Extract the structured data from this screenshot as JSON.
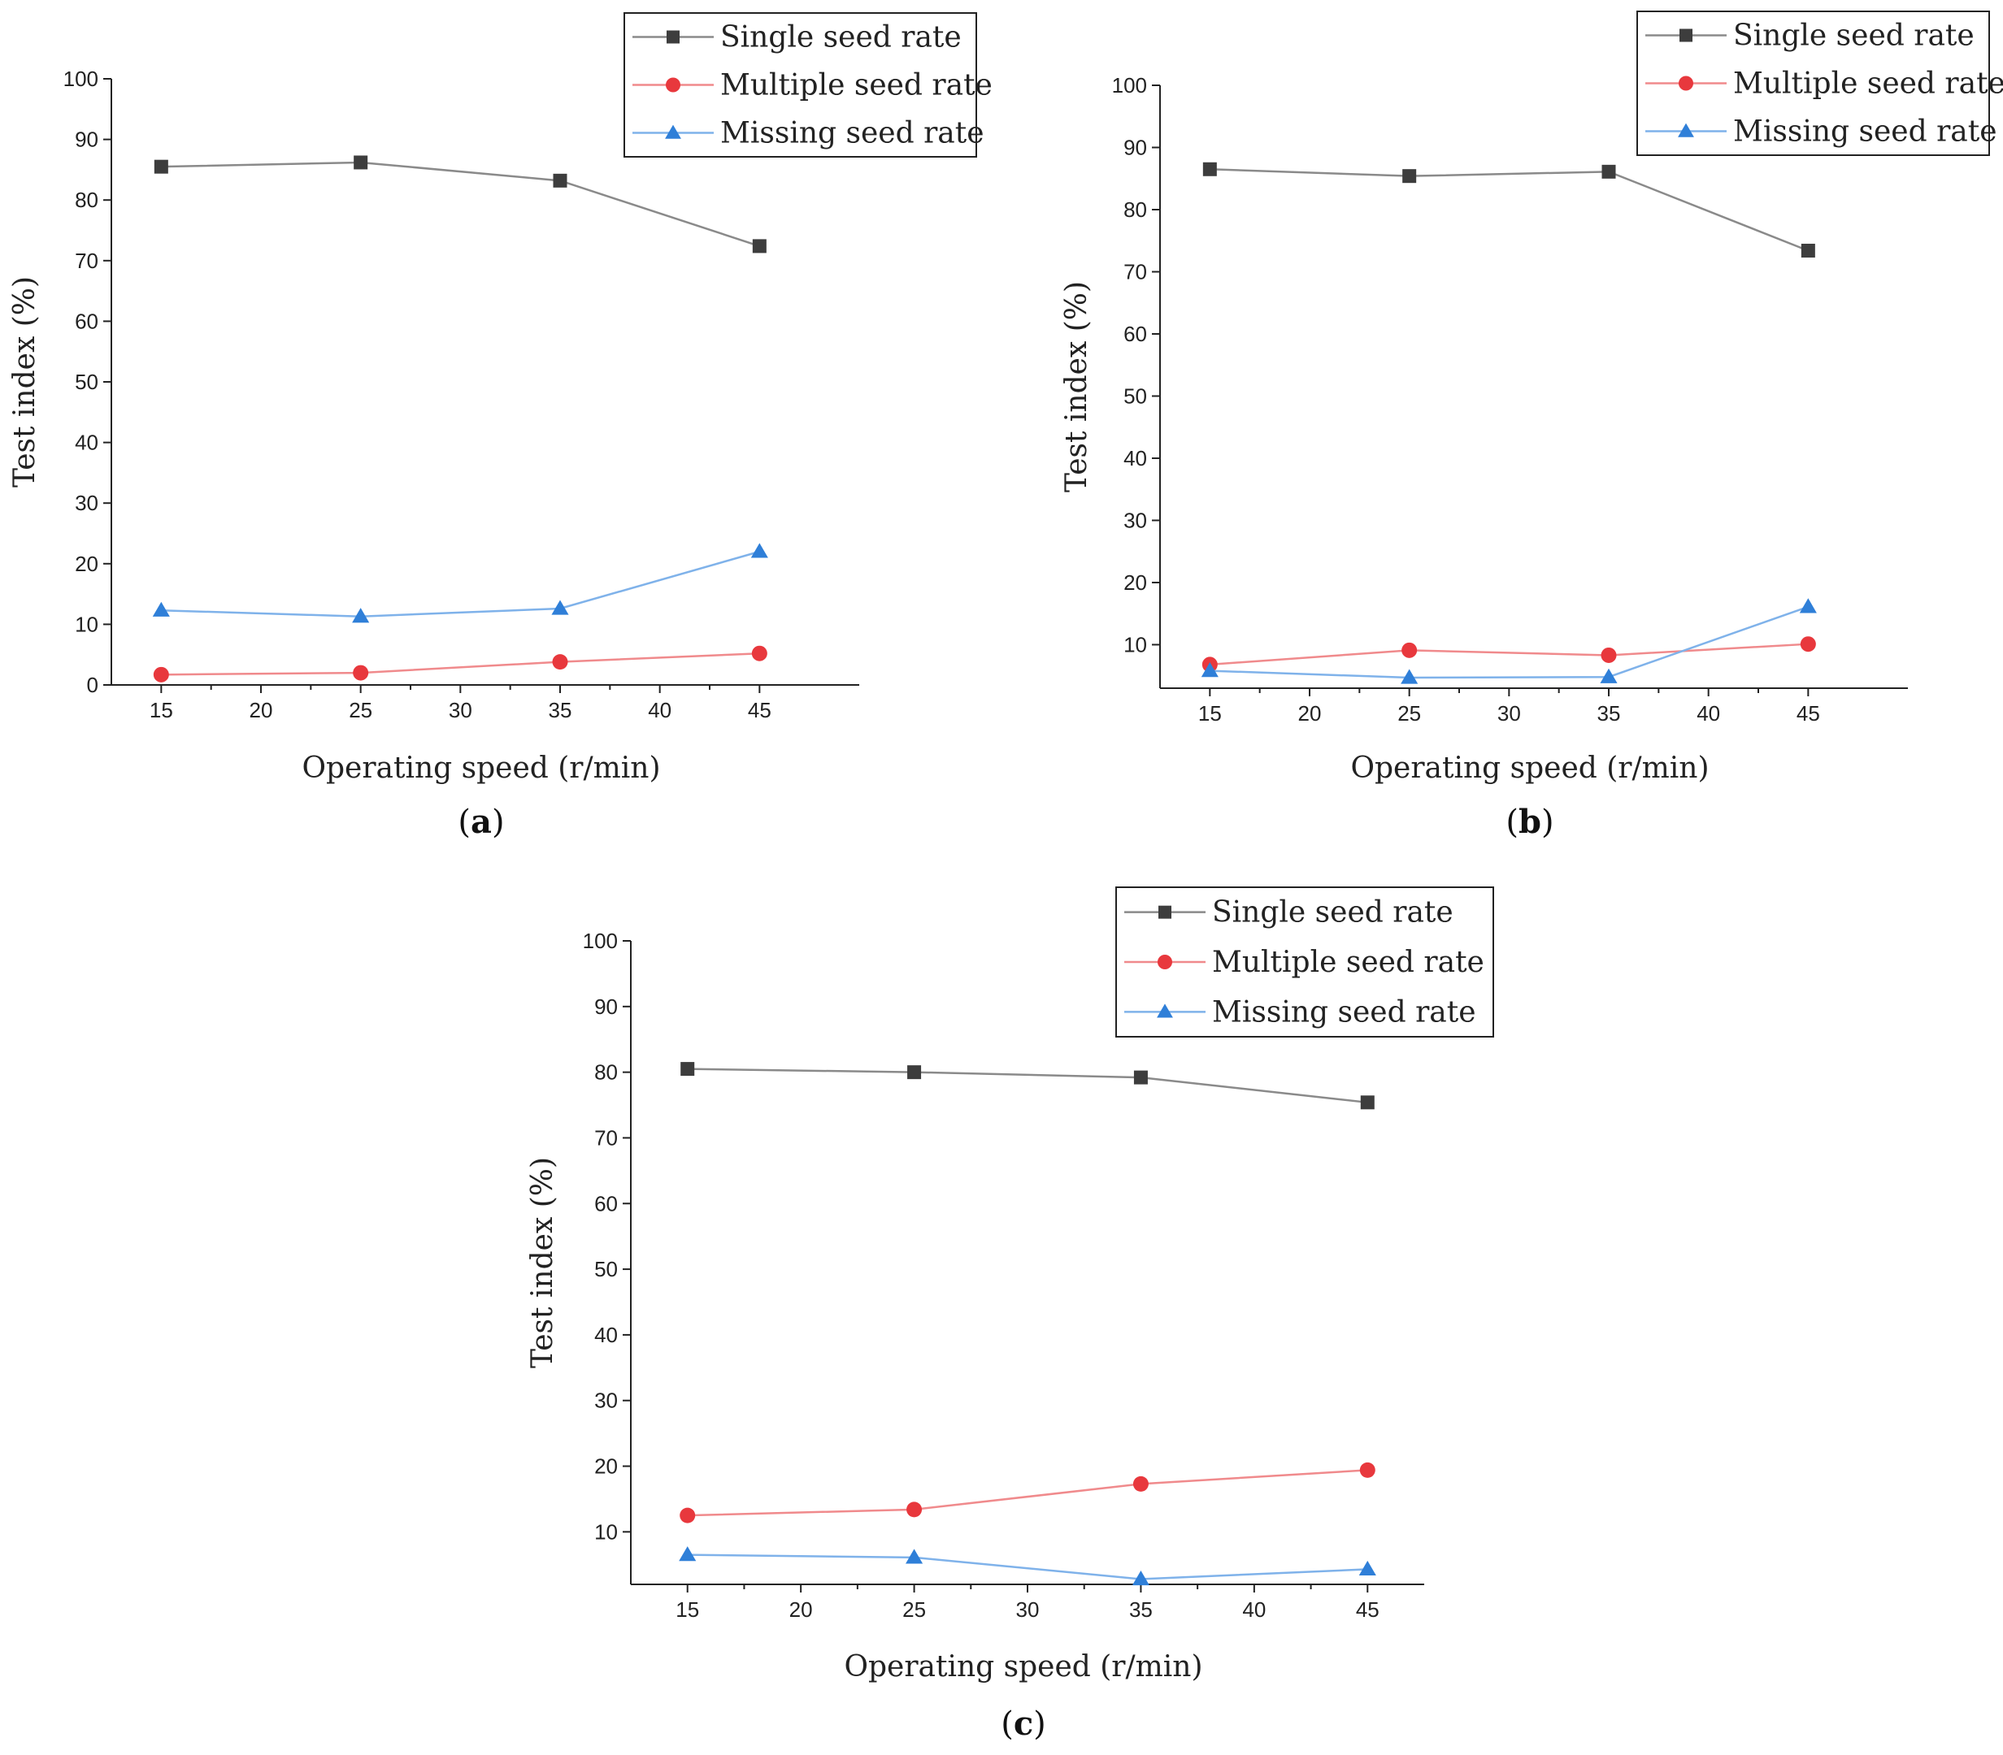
{
  "figure": {
    "colors": {
      "single": "#3d3d3d",
      "single_line": "#8a8a8a",
      "multiple": "#e8383d",
      "multiple_line": "#f08a8c",
      "missing": "#2f7fd8",
      "missing_line": "#7fb2ea",
      "axis": "#222222"
    }
  },
  "chart_data": [
    {
      "type": "line",
      "panel_label": "a",
      "xlabel": "Operating speed (r/min)",
      "ylabel": "Test index (%)",
      "xlim": [
        12.5,
        50
      ],
      "ylim": [
        0,
        100
      ],
      "xticks": [
        15,
        20,
        25,
        30,
        35,
        40,
        45
      ],
      "yticks": [
        0,
        10,
        20,
        30,
        40,
        50,
        60,
        70,
        80,
        90,
        100
      ],
      "legend_position": "top-right",
      "x": [
        15,
        25,
        35,
        45
      ],
      "series": [
        {
          "name": "Single seed rate",
          "marker": "square",
          "values": [
            85.5,
            86.2,
            83.2,
            72.4
          ]
        },
        {
          "name": "Multiple seed rate",
          "marker": "circle",
          "values": [
            1.7,
            2.0,
            3.8,
            5.2
          ]
        },
        {
          "name": "Missing seed rate",
          "marker": "triangle",
          "values": [
            12.3,
            11.3,
            12.6,
            22.0
          ]
        }
      ]
    },
    {
      "type": "line",
      "panel_label": "b",
      "xlabel": "Operating speed (r/min)",
      "ylabel": "Test index (%)",
      "xlim": [
        12.5,
        50
      ],
      "ylim": [
        3,
        100
      ],
      "xticks": [
        15,
        20,
        25,
        30,
        35,
        40,
        45
      ],
      "yticks": [
        10,
        20,
        30,
        40,
        50,
        60,
        70,
        80,
        90,
        100
      ],
      "legend_position": "top-right",
      "x": [
        15,
        25,
        35,
        45
      ],
      "series": [
        {
          "name": "Single seed rate",
          "marker": "square",
          "values": [
            86.5,
            85.4,
            86.1,
            73.4
          ]
        },
        {
          "name": "Multiple seed rate",
          "marker": "circle",
          "values": [
            6.8,
            9.1,
            8.3,
            10.1
          ]
        },
        {
          "name": "Missing seed rate",
          "marker": "triangle",
          "values": [
            5.8,
            4.7,
            4.8,
            16.1
          ]
        }
      ]
    },
    {
      "type": "line",
      "panel_label": "c",
      "xlabel": "Operating speed (r/min)",
      "ylabel": "Test index (%)",
      "xlim": [
        12.5,
        47.5
      ],
      "ylim": [
        2,
        100
      ],
      "xticks": [
        15,
        20,
        25,
        30,
        35,
        40,
        45
      ],
      "yticks": [
        10,
        20,
        30,
        40,
        50,
        60,
        70,
        80,
        90,
        100
      ],
      "legend_position": "top-right",
      "x": [
        15,
        25,
        35,
        45
      ],
      "series": [
        {
          "name": "Single seed rate",
          "marker": "square",
          "values": [
            80.5,
            80.0,
            79.2,
            75.4
          ]
        },
        {
          "name": "Multiple seed rate",
          "marker": "circle",
          "values": [
            12.5,
            13.4,
            17.3,
            19.4
          ]
        },
        {
          "name": "Missing seed rate",
          "marker": "triangle",
          "values": [
            6.5,
            6.1,
            2.8,
            4.3
          ]
        }
      ]
    }
  ]
}
